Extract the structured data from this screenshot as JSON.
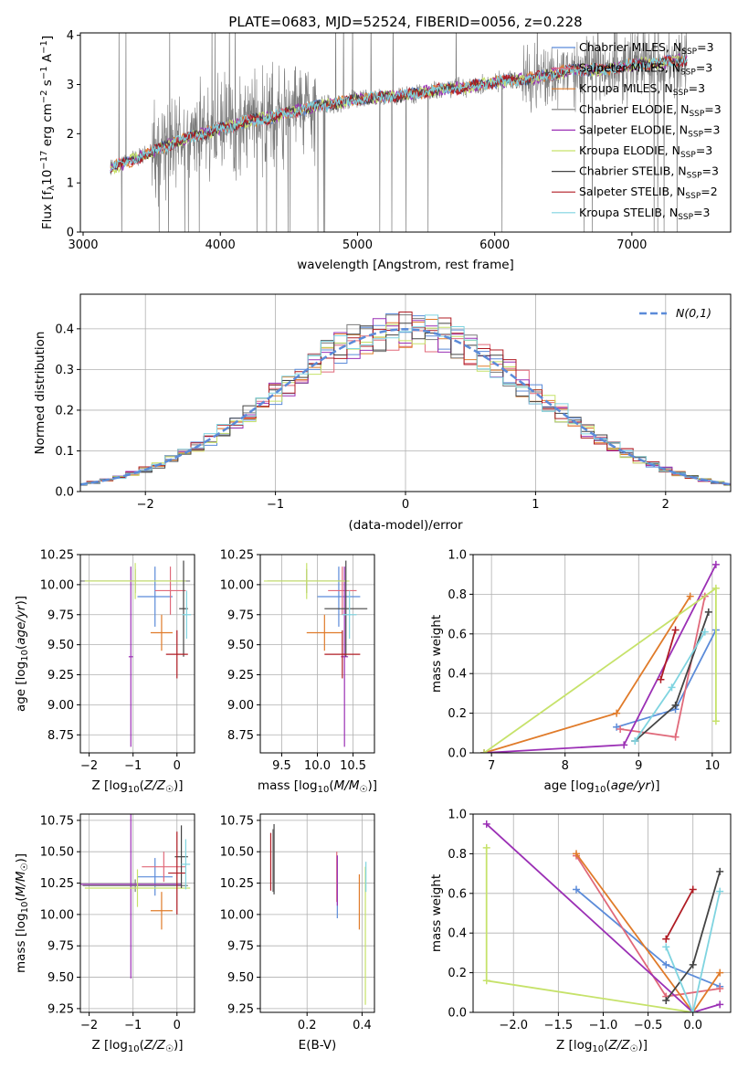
{
  "figure": {
    "title": "PLATE=0683, MJD=52524, FIBERID=0056, z=0.228"
  },
  "series": [
    {
      "name": "Chabrier MILES, N",
      "nssp": "3",
      "color": "#5b8bd9"
    },
    {
      "name": "Salpeter MILES, N",
      "nssp": "3",
      "color": "#e0697a"
    },
    {
      "name": "Kroupa MILES, N",
      "nssp": "3",
      "color": "#e07b2a"
    },
    {
      "name": "Chabrier ELODIE, N",
      "nssp": "3",
      "color": "#7a7a7a"
    },
    {
      "name": "Salpeter ELODIE, N",
      "nssp": "3",
      "color": "#9b30b5"
    },
    {
      "name": "Kroupa ELODIE, N",
      "nssp": "3",
      "color": "#c6e26a"
    },
    {
      "name": "Chabrier STELIB, N",
      "nssp": "3",
      "color": "#444444"
    },
    {
      "name": "Salpeter STELIB, N",
      "nssp": "2",
      "color": "#b01c24"
    },
    {
      "name": "Kroupa STELIB, N",
      "nssp": "3",
      "color": "#7fd4e0"
    }
  ],
  "chart_data": [
    {
      "type": "line",
      "id": "spectrum",
      "title": "PLATE=0683, MJD=52524, FIBERID=0056, z=0.228",
      "xlabel": "wavelength [Angstrom, rest frame]",
      "ylabel": "Flux [f_λ 10^-17 erg cm^-2 s^-1 A^-1]",
      "xlim": [
        2980,
        7720
      ],
      "ylim": [
        0,
        4.05
      ],
      "xticks": [
        3000,
        4000,
        5000,
        6000,
        7000
      ],
      "yticks": [
        0,
        1,
        2,
        3,
        4
      ],
      "continuum": {
        "x": [
          3200,
          3400,
          3600,
          3800,
          4000,
          4200,
          4400,
          4600,
          4800,
          5000,
          5200,
          5400,
          5600,
          5800,
          6000,
          6200,
          6400,
          6600,
          6800,
          7000,
          7200,
          7400
        ],
        "y": [
          1.3,
          1.5,
          1.75,
          1.95,
          2.1,
          2.25,
          2.35,
          2.5,
          2.6,
          2.7,
          2.75,
          2.8,
          2.9,
          2.95,
          3.05,
          3.1,
          3.2,
          3.3,
          3.3,
          3.4,
          3.45,
          3.5
        ]
      },
      "legend": "upper right"
    },
    {
      "type": "line",
      "id": "residuals",
      "xlabel": "(data-model)/error",
      "ylabel": "Normed distribution",
      "xlim": [
        -2.5,
        2.5
      ],
      "ylim": [
        0,
        0.485
      ],
      "xticks": [
        -2,
        -1,
        0,
        1,
        2
      ],
      "yticks": [
        0.0,
        0.1,
        0.2,
        0.3,
        0.4
      ],
      "gaussian_label": "N(0,1)",
      "gaussian_color": "#5b8bd9",
      "grid": true
    },
    {
      "type": "scatter",
      "id": "age-vs-Z",
      "xlabel": "Z [log10(Z/Z☉)]",
      "ylabel": "age [log10(age/yr)]",
      "xlim": [
        -2.2,
        0.4
      ],
      "ylim": [
        8.6,
        10.25
      ],
      "xticks": [
        -2,
        -1,
        0
      ],
      "yticks": [
        8.75,
        9.0,
        9.25,
        9.5,
        9.75,
        10.0,
        10.25
      ],
      "points": [
        {
          "s": 0,
          "x": -0.5,
          "y": 9.9,
          "ex": 0.4,
          "ey": 0.25
        },
        {
          "s": 1,
          "x": -0.15,
          "y": 9.95,
          "ex": 0.35,
          "ey": 0.2
        },
        {
          "s": 2,
          "x": -0.35,
          "y": 9.6,
          "ex": 0.25,
          "ey": 0.15
        },
        {
          "s": 3,
          "x": -0.95,
          "y": 10.03,
          "ex": 1.25,
          "ey": 0.1
        },
        {
          "s": 4,
          "x": -1.05,
          "y": 9.4,
          "ex": 0.05,
          "ey": 0.75
        },
        {
          "s": 5,
          "x": -0.95,
          "y": 10.03,
          "ex": 1.15,
          "ey": 0.15
        },
        {
          "s": 6,
          "x": 0.15,
          "y": 9.8,
          "ex": 0.1,
          "ey": 0.4
        },
        {
          "s": 7,
          "x": 0.0,
          "y": 9.42,
          "ex": 0.25,
          "ey": 0.2
        },
        {
          "s": 8,
          "x": 0.22,
          "y": 9.75,
          "ex": 0.1,
          "ey": 0.2
        }
      ]
    },
    {
      "type": "scatter",
      "id": "age-vs-mass",
      "xlabel": "mass [log10(M/M☉)]",
      "ylabel": "",
      "xlim": [
        9.2,
        10.8
      ],
      "ylim": [
        8.6,
        10.25
      ],
      "xticks": [
        9.5,
        10.0,
        10.5
      ],
      "yticks": [
        8.75,
        9.0,
        9.25,
        9.5,
        9.75,
        10.0,
        10.25
      ],
      "points": [
        {
          "s": 0,
          "x": 10.3,
          "y": 9.9,
          "ex": 0.3,
          "ey": 0.25
        },
        {
          "s": 1,
          "x": 10.35,
          "y": 9.95,
          "ex": 0.2,
          "ey": 0.2
        },
        {
          "s": 2,
          "x": 10.1,
          "y": 9.6,
          "ex": 0.25,
          "ey": 0.15
        },
        {
          "s": 3,
          "x": 9.85,
          "y": 10.03,
          "ex": 0.55,
          "ey": 0.1
        },
        {
          "s": 4,
          "x": 10.38,
          "y": 9.4,
          "ex": 0.05,
          "ey": 0.75
        },
        {
          "s": 5,
          "x": 9.85,
          "y": 10.03,
          "ex": 0.6,
          "ey": 0.15
        },
        {
          "s": 6,
          "x": 10.4,
          "y": 9.8,
          "ex": 0.3,
          "ey": 0.4
        },
        {
          "s": 7,
          "x": 10.35,
          "y": 9.42,
          "ex": 0.25,
          "ey": 0.2
        },
        {
          "s": 8,
          "x": 10.45,
          "y": 9.75,
          "ex": 0.1,
          "ey": 0.2
        }
      ]
    },
    {
      "type": "line",
      "id": "weight-vs-age",
      "xlabel": "age [log10(age/yr)]",
      "ylabel": "mass weight",
      "xlim": [
        6.75,
        10.25
      ],
      "ylim": [
        0,
        1.0
      ],
      "xticks": [
        7,
        8,
        9,
        10
      ],
      "yticks": [
        0.0,
        0.2,
        0.4,
        0.6,
        0.8,
        1.0
      ],
      "lines": [
        {
          "s": 0,
          "x": [
            8.7,
            9.5,
            10.05
          ],
          "y": [
            0.13,
            0.22,
            0.62
          ]
        },
        {
          "s": 1,
          "x": [
            8.75,
            9.5,
            9.9
          ],
          "y": [
            0.12,
            0.08,
            0.79
          ]
        },
        {
          "s": 2,
          "x": [
            6.9,
            8.7,
            9.7
          ],
          "y": [
            0.0,
            0.2,
            0.79
          ]
        },
        {
          "s": 4,
          "x": [
            6.9,
            8.8,
            10.05
          ],
          "y": [
            0.0,
            0.04,
            0.95
          ]
        },
        {
          "s": 5,
          "x": [
            6.9,
            10.05,
            10.05
          ],
          "y": [
            0.0,
            0.83,
            0.16
          ]
        },
        {
          "s": 6,
          "x": [
            8.95,
            9.5,
            9.95
          ],
          "y": [
            0.06,
            0.24,
            0.71
          ]
        },
        {
          "s": 7,
          "x": [
            9.3,
            9.5
          ],
          "y": [
            0.37,
            0.62
          ]
        },
        {
          "s": 8,
          "x": [
            8.95,
            9.45,
            9.9
          ],
          "y": [
            0.06,
            0.33,
            0.61
          ]
        }
      ]
    },
    {
      "type": "scatter",
      "id": "mass-vs-Z",
      "xlabel": "Z [log10(Z/Z☉)]",
      "ylabel": "mass [log10(M/M☉)]",
      "xlim": [
        -2.2,
        0.4
      ],
      "ylim": [
        9.22,
        10.8
      ],
      "xticks": [
        -2,
        -1,
        0
      ],
      "yticks": [
        9.25,
        9.5,
        9.75,
        10.0,
        10.25,
        10.5,
        10.75
      ],
      "points": [
        {
          "s": 0,
          "x": -0.5,
          "y": 10.3,
          "ex": 0.4,
          "ey": 0.15
        },
        {
          "s": 1,
          "x": -0.3,
          "y": 10.38,
          "ex": 0.5,
          "ey": 0.12
        },
        {
          "s": 2,
          "x": -0.35,
          "y": 10.03,
          "ex": 0.25,
          "ey": 0.15
        },
        {
          "s": 3,
          "x": -0.95,
          "y": 10.23,
          "ex": 1.2,
          "ey": 0.05
        },
        {
          "s": 4,
          "x": -1.05,
          "y": 10.24,
          "ex": 1.15,
          "ey": 0.75
        },
        {
          "s": 5,
          "x": -0.9,
          "y": 10.21,
          "ex": 1.2,
          "ey": 0.15
        },
        {
          "s": 6,
          "x": 0.1,
          "y": 10.46,
          "ex": 0.15,
          "ey": 0.25
        },
        {
          "s": 7,
          "x": 0.0,
          "y": 10.33,
          "ex": 0.2,
          "ey": 0.33
        },
        {
          "s": 8,
          "x": 0.2,
          "y": 10.4,
          "ex": 0.1,
          "ey": 0.2
        }
      ]
    },
    {
      "type": "scatter",
      "id": "mass-vs-EBV",
      "xlabel": "E(B-V)",
      "ylabel": "",
      "xlim": [
        0.03,
        0.445
      ],
      "ylim": [
        9.22,
        10.8
      ],
      "xticks": [
        0.2,
        0.4
      ],
      "yticks": [
        9.25,
        9.5,
        9.75,
        10.0,
        10.25,
        10.5,
        10.75
      ],
      "points": [
        {
          "s": 0,
          "x": 0.31,
          "y": 10.22,
          "ey": 0.25
        },
        {
          "s": 1,
          "x": 0.308,
          "y": 10.3,
          "ey": 0.2
        },
        {
          "s": 2,
          "x": 0.39,
          "y": 10.1,
          "ey": 0.22
        },
        {
          "s": 3,
          "x": 0.076,
          "y": 10.43,
          "ey": 0.25
        },
        {
          "s": 4,
          "x": 0.31,
          "y": 10.27,
          "ey": 0.2
        },
        {
          "s": 5,
          "x": 0.412,
          "y": 9.83,
          "ey": 0.55
        },
        {
          "s": 6,
          "x": 0.08,
          "y": 10.44,
          "ey": 0.28
        },
        {
          "s": 7,
          "x": 0.068,
          "y": 10.42,
          "ey": 0.23
        },
        {
          "s": 8,
          "x": 0.414,
          "y": 10.3,
          "ey": 0.12
        }
      ]
    },
    {
      "type": "line",
      "id": "weight-vs-Z",
      "xlabel": "Z [log10(Z/Z☉)]",
      "ylabel": "mass weight",
      "xlim": [
        -2.45,
        0.42
      ],
      "ylim": [
        0,
        1.0
      ],
      "xticks": [
        -2.0,
        -1.5,
        -1.0,
        -0.5,
        0.0
      ],
      "yticks": [
        0.0,
        0.2,
        0.4,
        0.6,
        0.8,
        1.0
      ],
      "lines": [
        {
          "s": 0,
          "x": [
            -1.3,
            -0.3,
            0.3
          ],
          "y": [
            0.62,
            0.24,
            0.13
          ]
        },
        {
          "s": 1,
          "x": [
            -1.3,
            -0.3,
            0.3
          ],
          "y": [
            0.79,
            0.08,
            0.12
          ]
        },
        {
          "s": 2,
          "x": [
            -1.3,
            0.0,
            0.3
          ],
          "y": [
            0.8,
            0.0,
            0.2
          ]
        },
        {
          "s": 4,
          "x": [
            -2.3,
            0.0,
            0.3
          ],
          "y": [
            0.95,
            0.0,
            0.04
          ]
        },
        {
          "s": 5,
          "x": [
            -2.3,
            -2.3,
            0.0
          ],
          "y": [
            0.83,
            0.16,
            0.0
          ]
        },
        {
          "s": 6,
          "x": [
            -0.3,
            0.0,
            0.3
          ],
          "y": [
            0.06,
            0.24,
            0.71
          ]
        },
        {
          "s": 7,
          "x": [
            -0.3,
            0.0
          ],
          "y": [
            0.37,
            0.62
          ]
        },
        {
          "s": 8,
          "x": [
            -0.3,
            0.0,
            0.3
          ],
          "y": [
            0.33,
            0.0,
            0.61
          ]
        }
      ]
    }
  ]
}
